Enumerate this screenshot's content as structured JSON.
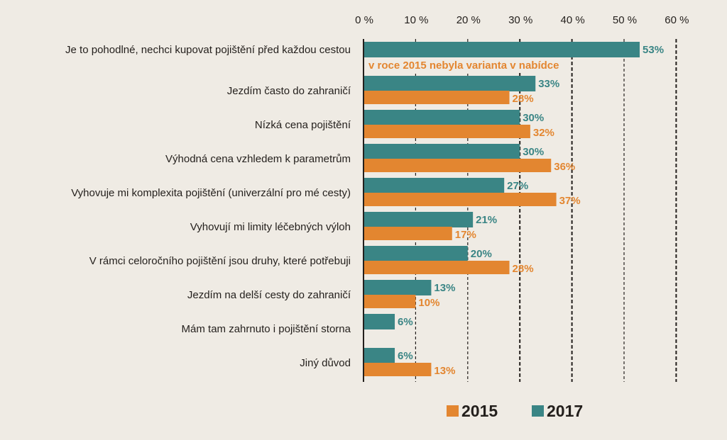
{
  "chart_data": {
    "type": "bar",
    "orientation": "horizontal",
    "title": "",
    "xlabel": "",
    "ylabel": "",
    "xlim": [
      0,
      60
    ],
    "x_ticks": [
      "0 %",
      "10 %",
      "20 %",
      "30 %",
      "40 %",
      "50 %",
      "60 %"
    ],
    "x_tick_values": [
      0,
      10,
      20,
      30,
      40,
      50,
      60
    ],
    "grid": true,
    "categories": [
      "Je to pohodlné, nechci kupovat pojištění před každou cestou",
      "Jezdím často do zahraničí",
      "Nízká cena pojištění",
      "Výhodná cena vzhledem k parametrům",
      "Vyhovuje mi komplexita pojištění (univerzální pro mé cesty)",
      "Vyhovují mi limity léčebných výloh",
      "V rámci celoročního pojištění jsou druhy, které potřebuji",
      "Jezdím na delší cesty do zahraničí",
      "Mám tam zahrnuto i pojištění storna",
      "Jiný důvod"
    ],
    "series": [
      {
        "name": "2017",
        "color": "#3a8585",
        "values": [
          53,
          33,
          30,
          30,
          27,
          21,
          20,
          13,
          6,
          6
        ],
        "labels": [
          "53%",
          "33%",
          "30%",
          "30%",
          "27%",
          "21%",
          "20%",
          "13%",
          "6%",
          "6%"
        ]
      },
      {
        "name": "2015",
        "color": "#e38630",
        "values": [
          null,
          28,
          32,
          36,
          37,
          17,
          28,
          10,
          null,
          13
        ],
        "labels": [
          null,
          "28%",
          "32%",
          "36%",
          "37%",
          "17%",
          "28%",
          "10%",
          null,
          "13%"
        ]
      }
    ],
    "annotations": [
      {
        "category_index": 0,
        "text": "v roce 2015 nebyla varianta v nabídce"
      }
    ],
    "legend": {
      "position": "bottom",
      "items": [
        {
          "label": "2015",
          "color": "#e38630"
        },
        {
          "label": "2017",
          "color": "#3a8585"
        }
      ]
    }
  }
}
